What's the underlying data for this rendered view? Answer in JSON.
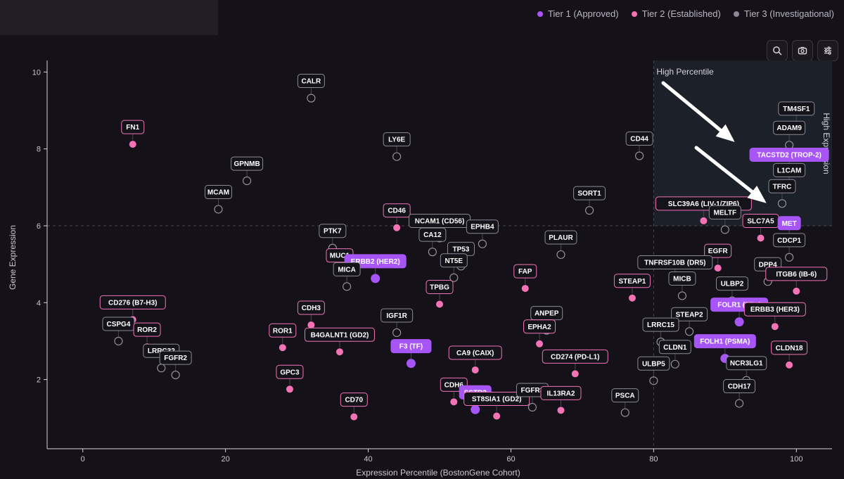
{
  "legend": [
    {
      "label": "Tier 1 (Approved)",
      "color": "#a855f7"
    },
    {
      "label": "Tier 2 (Established)",
      "color": "#f472b6"
    },
    {
      "label": "Tier 3 (Investigational)",
      "color": "#8b8894"
    }
  ],
  "toolbar": [
    "search-icon",
    "camera-icon",
    "sliders-icon"
  ],
  "chart_data": {
    "type": "scatter",
    "xlabel": "Expression Percentile (BostonGene Cohort)",
    "ylabel": "Gene Expression",
    "xlim": [
      -5,
      105
    ],
    "ylim": [
      0.2,
      10.3
    ],
    "xticks": [
      0,
      20,
      40,
      60,
      80,
      100
    ],
    "yticks": [
      2,
      4,
      6,
      8,
      10
    ],
    "threshold_x": 80,
    "threshold_y": 6,
    "region_labels": {
      "top": "High Percentile",
      "right": "High Expression"
    },
    "points": [
      {
        "gene": "CALR",
        "x": 32,
        "y": 9.32,
        "tier": 3
      },
      {
        "gene": "FN1",
        "x": 7,
        "y": 8.12,
        "tier": 2
      },
      {
        "gene": "LY6E",
        "x": 44,
        "y": 7.8,
        "tier": 3
      },
      {
        "gene": "CD44",
        "x": 78,
        "y": 7.82,
        "tier": 3
      },
      {
        "gene": "TM4SF1",
        "x": 100,
        "y": 8.6,
        "tier": 3
      },
      {
        "gene": "ADAM9",
        "x": 99,
        "y": 8.1,
        "tier": 3
      },
      {
        "gene": "TACSTD2 (TROP-2)",
        "x": 99,
        "y": 7.4,
        "tier": 1
      },
      {
        "gene": "L1CAM",
        "x": 99,
        "y": 7.0,
        "tier": 3
      },
      {
        "gene": "TFRC",
        "x": 98,
        "y": 6.58,
        "tier": 3
      },
      {
        "gene": "GPNMB",
        "x": 23,
        "y": 7.17,
        "tier": 3
      },
      {
        "gene": "MCAM",
        "x": 19,
        "y": 6.43,
        "tier": 3
      },
      {
        "gene": "SORT1",
        "x": 71,
        "y": 6.4,
        "tier": 3
      },
      {
        "gene": "SLC39A6 (LIV-1/ZIP6)",
        "x": 87,
        "y": 6.13,
        "tier": 2
      },
      {
        "gene": "MELTF",
        "x": 90,
        "y": 5.9,
        "tier": 3
      },
      {
        "gene": "SLC7A5",
        "x": 95,
        "y": 5.68,
        "tier": 2
      },
      {
        "gene": "MET",
        "x": 99,
        "y": 5.62,
        "tier": 1
      },
      {
        "gene": "CDCP1",
        "x": 99,
        "y": 5.18,
        "tier": 3
      },
      {
        "gene": "CD46",
        "x": 44,
        "y": 5.95,
        "tier": 2
      },
      {
        "gene": "NCAM1 (CD56)",
        "x": 50,
        "y": 5.68,
        "tier": 3
      },
      {
        "gene": "EPHB4",
        "x": 56,
        "y": 5.53,
        "tier": 3
      },
      {
        "gene": "PTK7",
        "x": 35,
        "y": 5.42,
        "tier": 3
      },
      {
        "gene": "CA12",
        "x": 49,
        "y": 5.32,
        "tier": 3
      },
      {
        "gene": "TP53",
        "x": 53,
        "y": 4.95,
        "tier": 3
      },
      {
        "gene": "PLAUR",
        "x": 67,
        "y": 5.25,
        "tier": 3
      },
      {
        "gene": "MUC1",
        "x": 36,
        "y": 4.78,
        "tier": 2
      },
      {
        "gene": "ERBB2 (HER2)",
        "x": 41,
        "y": 4.63,
        "tier": 1
      },
      {
        "gene": "NT5E",
        "x": 52,
        "y": 4.65,
        "tier": 3
      },
      {
        "gene": "MICA",
        "x": 37,
        "y": 4.42,
        "tier": 3
      },
      {
        "gene": "TPBG",
        "x": 50,
        "y": 3.96,
        "tier": 2
      },
      {
        "gene": "FAP",
        "x": 62,
        "y": 4.37,
        "tier": 2
      },
      {
        "gene": "EGFR",
        "x": 89,
        "y": 4.9,
        "tier": 2
      },
      {
        "gene": "TNFRSF10B (DR5)",
        "x": 83,
        "y": 4.6,
        "tier": 3
      },
      {
        "gene": "DPP4",
        "x": 96,
        "y": 4.55,
        "tier": 3
      },
      {
        "gene": "ITGB6 (IB-6)",
        "x": 100,
        "y": 4.3,
        "tier": 2
      },
      {
        "gene": "STEAP1",
        "x": 77,
        "y": 4.12,
        "tier": 2
      },
      {
        "gene": "MICB",
        "x": 84,
        "y": 4.18,
        "tier": 3
      },
      {
        "gene": "ULBP2",
        "x": 91,
        "y": 4.05,
        "tier": 3
      },
      {
        "gene": "FOLR1 (FRα)",
        "x": 92,
        "y": 3.5,
        "tier": 1
      },
      {
        "gene": "CD276 (B7-H3)",
        "x": 7,
        "y": 3.56,
        "tier": 2
      },
      {
        "gene": "CSPG4",
        "x": 5,
        "y": 3.0,
        "tier": 3
      },
      {
        "gene": "ROR2",
        "x": 9,
        "y": 2.85,
        "tier": 2
      },
      {
        "gene": "LRRC32",
        "x": 11,
        "y": 2.3,
        "tier": 3
      },
      {
        "gene": "FGFR2",
        "x": 13,
        "y": 2.12,
        "tier": 3
      },
      {
        "gene": "CDH3",
        "x": 32,
        "y": 3.42,
        "tier": 2
      },
      {
        "gene": "ROR1",
        "x": 28,
        "y": 2.83,
        "tier": 2
      },
      {
        "gene": "B4GALNT1 (GD2)",
        "x": 36,
        "y": 2.72,
        "tier": 2
      },
      {
        "gene": "IGF1R",
        "x": 44,
        "y": 3.22,
        "tier": 3
      },
      {
        "gene": "F3 (TF)",
        "x": 46,
        "y": 2.42,
        "tier": 1
      },
      {
        "gene": "ANPEP",
        "x": 65,
        "y": 3.28,
        "tier": 3
      },
      {
        "gene": "EPHA2",
        "x": 64,
        "y": 2.93,
        "tier": 2
      },
      {
        "gene": "STEAP2",
        "x": 85,
        "y": 3.25,
        "tier": 3
      },
      {
        "gene": "LRRC15",
        "x": 81,
        "y": 2.98,
        "tier": 3
      },
      {
        "gene": "FOLH1 (PSMA)",
        "x": 90,
        "y": 2.55,
        "tier": 1
      },
      {
        "gene": "ERBB3 (HER3)",
        "x": 97,
        "y": 3.38,
        "tier": 2
      },
      {
        "gene": "CLDN1",
        "x": 83,
        "y": 2.4,
        "tier": 3
      },
      {
        "gene": "CLDN18",
        "x": 99,
        "y": 2.38,
        "tier": 2
      },
      {
        "gene": "CA9 (CAIX)",
        "x": 55,
        "y": 2.25,
        "tier": 2
      },
      {
        "gene": "CD274 (PD-L1)",
        "x": 69,
        "y": 2.15,
        "tier": 2
      },
      {
        "gene": "ULBP5",
        "x": 80,
        "y": 1.97,
        "tier": 3
      },
      {
        "gene": "NCR3LG1",
        "x": 93,
        "y": 1.98,
        "tier": 3
      },
      {
        "gene": "GPC3",
        "x": 29,
        "y": 1.75,
        "tier": 2
      },
      {
        "gene": "CDH6",
        "x": 52,
        "y": 1.42,
        "tier": 2
      },
      {
        "gene": "SSTR2",
        "x": 55,
        "y": 1.22,
        "tier": 1
      },
      {
        "gene": "CD70",
        "x": 38,
        "y": 1.03,
        "tier": 2
      },
      {
        "gene": "ST8SIA1 (GD2)",
        "x": 58,
        "y": 1.05,
        "tier": 2
      },
      {
        "gene": "FGFR3",
        "x": 63,
        "y": 1.28,
        "tier": 3
      },
      {
        "gene": "IL13RA2",
        "x": 67,
        "y": 1.2,
        "tier": 2
      },
      {
        "gene": "PSCA",
        "x": 76,
        "y": 1.14,
        "tier": 3
      },
      {
        "gene": "CDH17",
        "x": 92,
        "y": 1.38,
        "tier": 3
      }
    ]
  }
}
